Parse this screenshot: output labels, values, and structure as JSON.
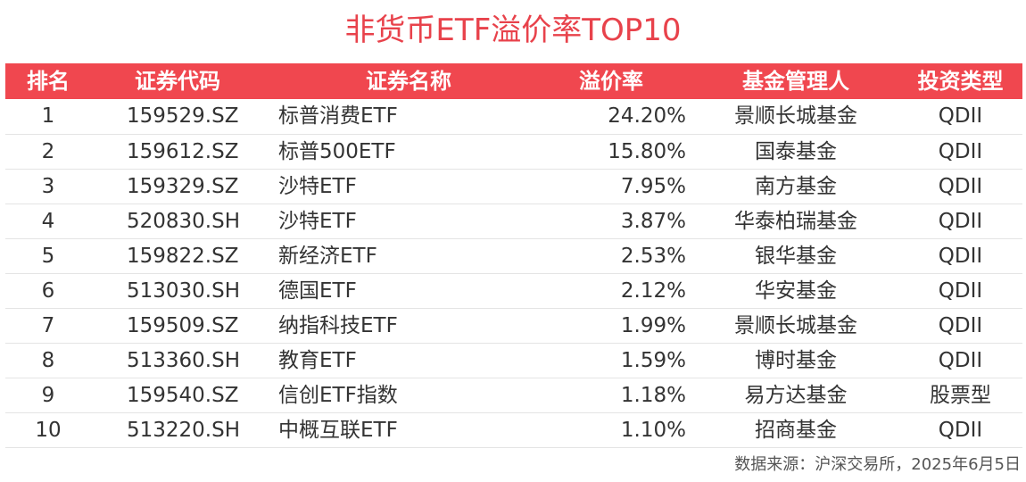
{
  "chart_data": {
    "type": "table",
    "title": "非货币ETF溢价率TOP10",
    "columns": [
      "排名",
      "证券代码",
      "证券名称",
      "溢价率",
      "基金管理人",
      "投资类型"
    ],
    "rows": [
      {
        "rank": "1",
        "code": "159529.SZ",
        "name": "标普消费ETF",
        "premium": "24.20%",
        "manager": "景顺长城基金",
        "type": "QDII"
      },
      {
        "rank": "2",
        "code": "159612.SZ",
        "name": "标普500ETF",
        "premium": "15.80%",
        "manager": "国泰基金",
        "type": "QDII"
      },
      {
        "rank": "3",
        "code": "159329.SZ",
        "name": "沙特ETF",
        "premium": "7.95%",
        "manager": "南方基金",
        "type": "QDII"
      },
      {
        "rank": "4",
        "code": "520830.SH",
        "name": "沙特ETF",
        "premium": "3.87%",
        "manager": "华泰柏瑞基金",
        "type": "QDII"
      },
      {
        "rank": "5",
        "code": "159822.SZ",
        "name": "新经济ETF",
        "premium": "2.53%",
        "manager": "银华基金",
        "type": "QDII"
      },
      {
        "rank": "6",
        "code": "513030.SH",
        "name": "德国ETF",
        "premium": "2.12%",
        "manager": "华安基金",
        "type": "QDII"
      },
      {
        "rank": "7",
        "code": "159509.SZ",
        "name": "纳指科技ETF",
        "premium": "1.99%",
        "manager": "景顺长城基金",
        "type": "QDII"
      },
      {
        "rank": "8",
        "code": "513360.SH",
        "name": "教育ETF",
        "premium": "1.59%",
        "manager": "博时基金",
        "type": "QDII"
      },
      {
        "rank": "9",
        "code": "159540.SZ",
        "name": "信创ETF指数",
        "premium": "1.18%",
        "manager": "易方达基金",
        "type": "股票型"
      },
      {
        "rank": "10",
        "code": "513220.SH",
        "name": "中概互联ETF",
        "premium": "1.10%",
        "manager": "招商基金",
        "type": "QDII"
      }
    ],
    "source": "数据来源：沪深交易所，2025年6月5日"
  },
  "colors": {
    "accent": "#f0474f",
    "title": "#e8424b",
    "text": "#333333"
  }
}
